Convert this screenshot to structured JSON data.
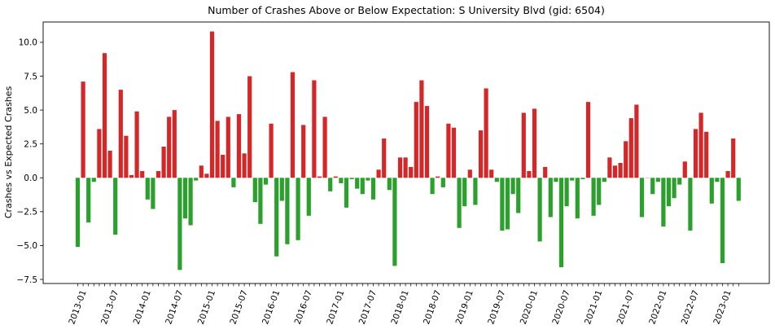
{
  "chart_data": {
    "type": "bar",
    "title": "Number of Crashes Above or Below Expectation: S University Blvd (gid: 6504)",
    "xlabel": "",
    "ylabel": "Crashes vs Expected Crashes",
    "ylim": [
      -7.8,
      11.5
    ],
    "yticks": [
      -7.5,
      -5.0,
      -2.5,
      0.0,
      2.5,
      5.0,
      7.5,
      10.0
    ],
    "ytick_labels": [
      "−7.5",
      "−5.0",
      "−2.5",
      "0.0",
      "2.5",
      "5.0",
      "7.5",
      "10.0"
    ],
    "xtick_labels": [
      "2013-01",
      "2013-07",
      "2014-01",
      "2014-07",
      "2015-01",
      "2015-07",
      "2016-01",
      "2016-07",
      "2017-01",
      "2017-07",
      "2018-01",
      "2018-07",
      "2019-01",
      "2019-07",
      "2020-01",
      "2020-07",
      "2021-01",
      "2021-07",
      "2022-01",
      "2022-07",
      "2023-01"
    ],
    "start_month": "2013-01",
    "positive_color": "#d62728",
    "negative_color": "#2ca02c",
    "values": [
      -5.1,
      7.1,
      -3.3,
      -0.3,
      3.6,
      9.2,
      2.0,
      -4.2,
      6.5,
      3.1,
      0.2,
      4.9,
      0.5,
      -1.6,
      -2.3,
      0.5,
      2.3,
      4.5,
      5.0,
      -6.8,
      -3.0,
      -3.5,
      -0.2,
      0.9,
      0.3,
      10.8,
      4.2,
      1.7,
      4.5,
      -0.7,
      4.7,
      1.8,
      7.5,
      -1.8,
      -3.4,
      -0.5,
      4.0,
      -5.8,
      -1.7,
      -4.9,
      7.8,
      -4.6,
      3.9,
      -2.8,
      7.2,
      0.1,
      4.5,
      -1.0,
      0.1,
      -0.4,
      -2.2,
      -0.1,
      -0.8,
      -1.2,
      -0.2,
      -1.6,
      0.6,
      2.9,
      -0.9,
      -6.5,
      1.5,
      1.5,
      0.8,
      5.6,
      7.2,
      5.3,
      -1.2,
      0.1,
      -0.7,
      4.0,
      3.7,
      -3.7,
      -2.1,
      0.6,
      -2.0,
      3.5,
      6.6,
      0.6,
      -0.3,
      -3.9,
      -3.8,
      -1.2,
      -2.6,
      4.8,
      0.5,
      5.1,
      -4.7,
      0.8,
      -2.9,
      -0.3,
      -6.6,
      -2.1,
      -0.2,
      -3.0,
      -0.1,
      5.6,
      -2.8,
      -2.0,
      -0.3,
      1.5,
      0.9,
      1.1,
      2.7,
      4.4,
      5.4,
      -2.9,
      0.0,
      -1.2,
      -0.3,
      -3.6,
      -2.1,
      -1.5,
      -0.5,
      1.2,
      -3.9,
      3.6,
      4.8,
      3.4,
      -1.9,
      -0.3,
      -6.3,
      0.5,
      2.9,
      -1.7
    ]
  }
}
